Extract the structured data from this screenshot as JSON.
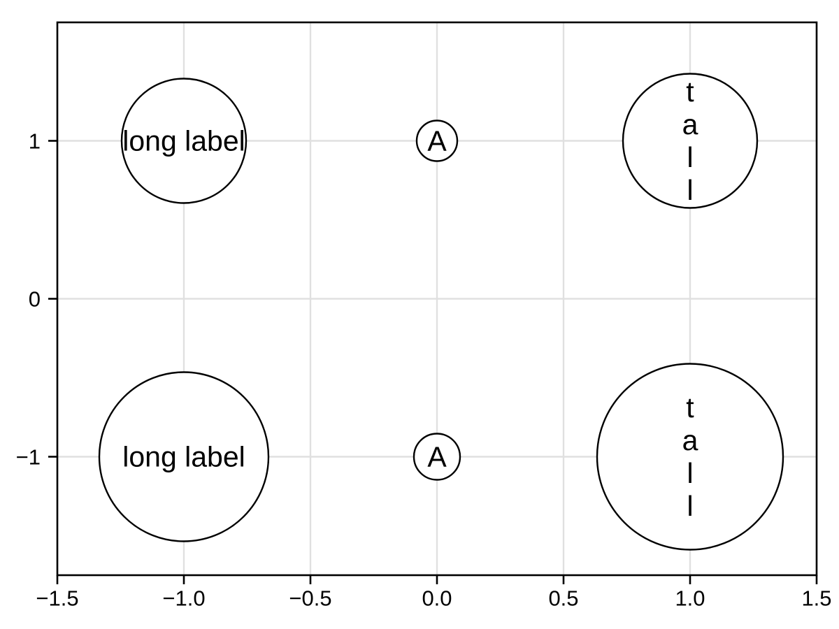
{
  "chart_data": {
    "type": "scatter",
    "title": "",
    "xlabel": "",
    "ylabel": "",
    "points": [
      {
        "x": -1,
        "y": 1,
        "label": "long label",
        "text_orientation": "horizontal",
        "radius_px": 89
      },
      {
        "x": 0,
        "y": 1,
        "label": "A",
        "text_orientation": "horizontal",
        "radius_px": 29
      },
      {
        "x": 1,
        "y": 1,
        "label": "tall",
        "text_orientation": "vertical",
        "radius_px": 96
      },
      {
        "x": -1,
        "y": -1,
        "label": "long label",
        "text_orientation": "horizontal",
        "radius_px": 121
      },
      {
        "x": 0,
        "y": -1,
        "label": "A",
        "text_orientation": "horizontal",
        "radius_px": 33
      },
      {
        "x": 1,
        "y": -1,
        "label": "tall",
        "text_orientation": "vertical",
        "radius_px": 133
      }
    ],
    "x_axis": {
      "limits": [
        -1.5,
        1.5
      ],
      "tick_values": [
        -1.5,
        -1.0,
        -0.5,
        0.0,
        0.5,
        1.0,
        1.5
      ],
      "tick_labels": [
        "−1.5",
        "−1.0",
        "−0.5",
        "0.0",
        "0.5",
        "1.0",
        "1.5"
      ]
    },
    "y_axis": {
      "limits": [
        -1.75,
        1.75
      ],
      "tick_values": [
        1,
        0,
        -1
      ],
      "tick_labels": [
        "1",
        "0",
        "−1"
      ]
    },
    "grid": true,
    "legend": false,
    "colors": {
      "background": "#ffffff",
      "grid": "#e0e0e0",
      "spine": "#000000",
      "tick": "#000000",
      "marker_stroke": "#000000",
      "marker_fill": "#ffffff",
      "text": "#000000"
    }
  }
}
